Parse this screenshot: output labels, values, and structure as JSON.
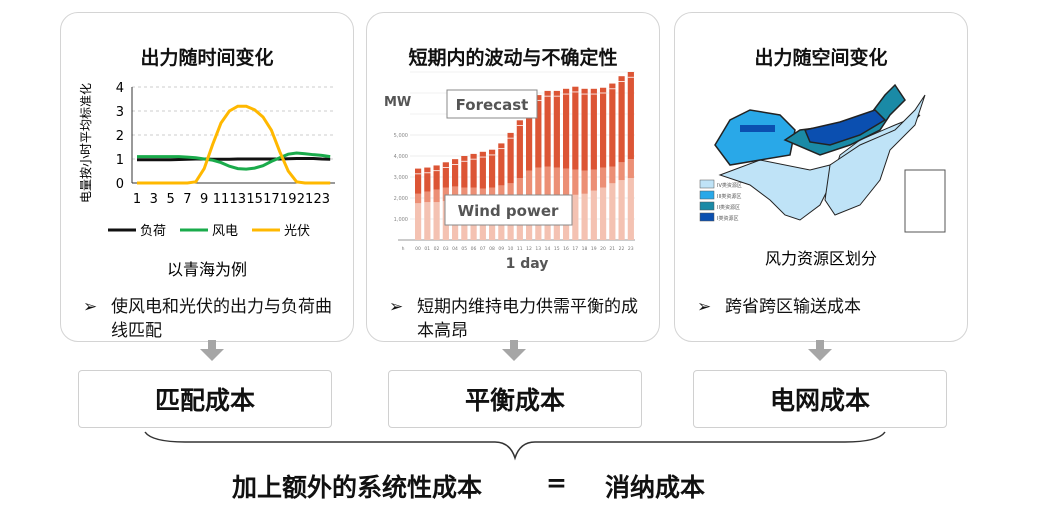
{
  "cards": [
    {
      "title": "出力随时间变化",
      "bullet": "使风电和光伏的出力与负荷曲线匹配",
      "caption": "以青海为例",
      "cost": "匹配成本"
    },
    {
      "title": "短期内的波动与不确定性",
      "bullet": "短期内维持电力供需平衡的成本高昂",
      "cost": "平衡成本"
    },
    {
      "title": "出力随空间变化",
      "bullet": "跨省跨区输送成本",
      "caption": "风力资源区划分",
      "cost": "电网成本"
    }
  ],
  "bullet_marker": "➢",
  "bottom": {
    "left": "加上额外的系统性成本",
    "equals": "=",
    "right": "消纳成本"
  },
  "map": {
    "legend": [
      {
        "label": "IV类资源区",
        "color": "#bfe3f7"
      },
      {
        "label": "III类资源区",
        "color": "#29a8e8"
      },
      {
        "label": "II类资源区",
        "color": "#1a8aa6"
      },
      {
        "label": "I类资源区",
        "color": "#0b4fb0"
      }
    ]
  },
  "chart_data": [
    {
      "type": "line",
      "ylabel": "电量按小时平均标准化",
      "ylim": [
        0,
        4
      ],
      "yticks": [
        0,
        1,
        2,
        3,
        4
      ],
      "xticks": [
        1,
        3,
        5,
        7,
        9,
        11,
        13,
        15,
        17,
        19,
        21,
        23
      ],
      "x": [
        1,
        2,
        3,
        4,
        5,
        6,
        7,
        8,
        9,
        10,
        11,
        12,
        13,
        14,
        15,
        16,
        17,
        18,
        19,
        20,
        21,
        22,
        23,
        24
      ],
      "series": [
        {
          "name": "负荷",
          "color": "#111111",
          "values": [
            0.97,
            0.97,
            0.97,
            0.97,
            0.97,
            0.98,
            0.99,
            1.0,
            1.0,
            0.99,
            0.99,
            0.99,
            1.0,
            1.0,
            1.0,
            1.0,
            1.0,
            1.0,
            1.01,
            1.02,
            1.02,
            1.02,
            1.0,
            0.99
          ]
        },
        {
          "name": "风电",
          "color": "#1aab4b",
          "values": [
            1.1,
            1.1,
            1.1,
            1.1,
            1.1,
            1.1,
            1.08,
            1.05,
            1.0,
            0.95,
            0.85,
            0.7,
            0.6,
            0.58,
            0.62,
            0.72,
            0.9,
            1.05,
            1.2,
            1.25,
            1.22,
            1.18,
            1.15,
            1.1
          ]
        },
        {
          "name": "光伏",
          "color": "#ffb800",
          "values": [
            0,
            0,
            0,
            0,
            0,
            0,
            0,
            0.05,
            0.6,
            1.6,
            2.5,
            3.0,
            3.2,
            3.2,
            3.05,
            2.75,
            2.2,
            1.3,
            0.5,
            0.05,
            0,
            0,
            0,
            0
          ]
        }
      ]
    },
    {
      "type": "bar",
      "ylabel": "MW",
      "xlabel": "1 day",
      "annotations": [
        "Forecast",
        "Wind power"
      ],
      "yticks": [
        "1,000",
        "2,000",
        "3,000",
        "4,000",
        "5,000"
      ],
      "ytick_values": [
        1000,
        2000,
        3000,
        4000,
        5000
      ],
      "categories": [
        "h",
        "00",
        "01",
        "02",
        "03",
        "04",
        "05",
        "06",
        "07",
        "08",
        "09",
        "10",
        "11",
        "12",
        "13",
        "14",
        "15",
        "16",
        "17",
        "18",
        "19",
        "20",
        "21",
        "22",
        "23"
      ],
      "series": [
        {
          "color": "#f4c2b2",
          "values": [
            null,
            1750,
            1800,
            1800,
            1850,
            1900,
            1900,
            1900,
            1900,
            1900,
            1950,
            2000,
            2050,
            2100,
            2100,
            2100,
            2100,
            2100,
            2150,
            2200,
            2350,
            2500,
            2700,
            2850,
            2950
          ]
        },
        {
          "color": "#ec8f75",
          "values": [
            null,
            450,
            500,
            600,
            650,
            650,
            600,
            600,
            550,
            600,
            650,
            700,
            900,
            1200,
            1350,
            1400,
            1350,
            1300,
            1200,
            1100,
            1000,
            950,
            800,
            850,
            900
          ]
        },
        {
          "color": "#dc5535",
          "values": [
            null,
            1200,
            1150,
            1150,
            1200,
            1300,
            1500,
            1600,
            1750,
            1800,
            2000,
            2400,
            2750,
            2800,
            3450,
            3600,
            3650,
            3800,
            3950,
            3900,
            3850,
            3800,
            3950,
            4100,
            4150
          ]
        }
      ]
    }
  ]
}
